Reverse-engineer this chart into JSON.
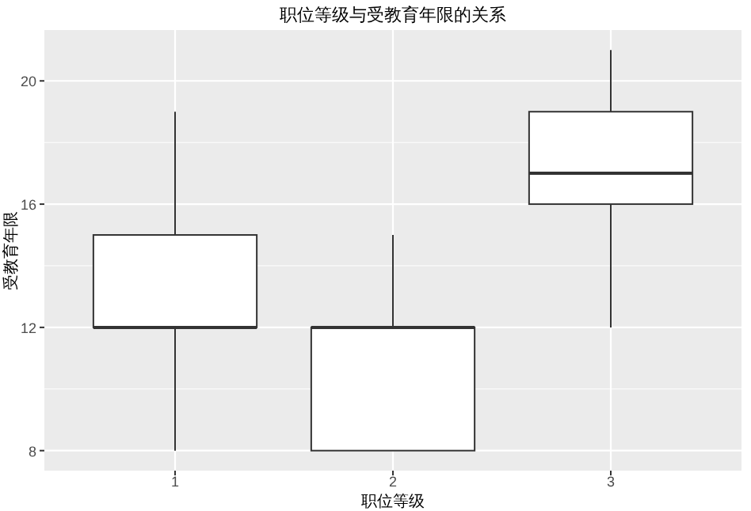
{
  "chart_data": {
    "type": "box",
    "title": "职位等级与受教育年限的关系",
    "xlabel": "职位等级",
    "ylabel": "受教育年限",
    "categories": [
      "1",
      "2",
      "3"
    ],
    "boxes": [
      {
        "low": 8,
        "q1": 12,
        "median": 12,
        "q3": 15,
        "high": 19
      },
      {
        "low": 8,
        "q1": 8,
        "median": 12,
        "q3": 12,
        "high": 15
      },
      {
        "low": 12,
        "q1": 16,
        "median": 17,
        "q3": 19,
        "high": 21
      }
    ],
    "ylim": [
      7.35,
      21.65
    ],
    "yticks": [
      8,
      12,
      16,
      20
    ],
    "grid": true
  }
}
